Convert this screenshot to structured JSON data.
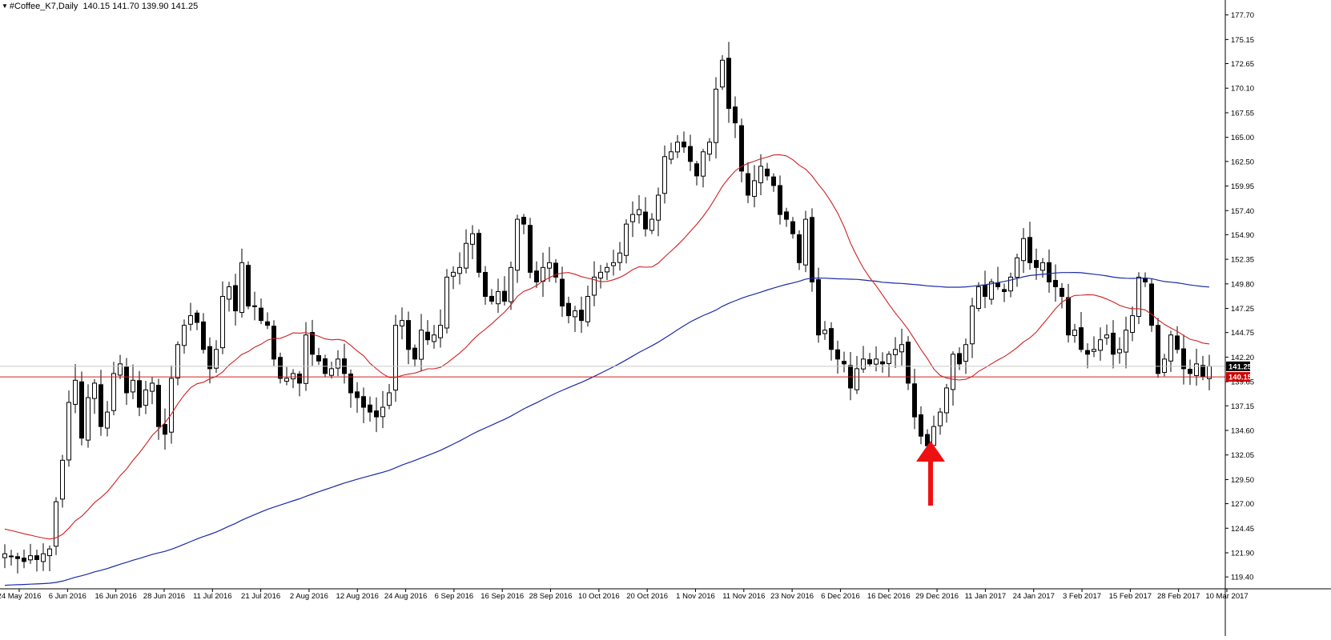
{
  "header": {
    "symbol": "#Coffee_K7,Daily",
    "ohlc": "140.15 141.70 139.90 141.25"
  },
  "colors": {
    "background": "#ffffff",
    "candle": "#000000",
    "ma_fast": "#cc2222",
    "ma_slow": "#1c2aa6",
    "bid_line": "#cc2222",
    "ask_line": "#c8c8c8",
    "bid_label_bg": "#cc0000",
    "ask_label_bg": "#000000",
    "arrow": "#ee1111"
  },
  "chart_data": {
    "type": "candlestick",
    "title": "#Coffee_K7,Daily",
    "grid": false,
    "ylim": [
      118.25,
      178.75
    ],
    "y_ticks": [
      "177.70",
      "175.15",
      "172.65",
      "170.10",
      "167.55",
      "165.00",
      "162.50",
      "159.95",
      "157.40",
      "154.90",
      "152.35",
      "149.80",
      "147.25",
      "144.75",
      "142.20",
      "139.65",
      "137.15",
      "134.60",
      "132.05",
      "129.50",
      "127.00",
      "124.45",
      "121.90",
      "119.40"
    ],
    "x_labels": [
      "24 May 2016",
      "6 Jun 2016",
      "16 Jun 2016",
      "28 Jun 2016",
      "11 Jul 2016",
      "21 Jul 2016",
      "2 Aug 2016",
      "12 Aug 2016",
      "24 Aug 2016",
      "6 Sep 2016",
      "16 Sep 2016",
      "28 Sep 2016",
      "10 Oct 2016",
      "20 Oct 2016",
      "1 Nov 2016",
      "11 Nov 2016",
      "23 Nov 2016",
      "6 Dec 2016",
      "16 Dec 2016",
      "29 Dec 2016",
      "11 Jan 2017",
      "24 Jan 2017",
      "3 Feb 2017",
      "15 Feb 2017",
      "28 Feb 2017",
      "10 Mar 2017"
    ],
    "bid": "140.15",
    "ask": "141.25",
    "closes": [
      121.8,
      121.5,
      121.3,
      121.0,
      121.6,
      121.2,
      121.8,
      122.3,
      127.2,
      131.5,
      137.5,
      139.8,
      133.8,
      138.0,
      139.5,
      135.0,
      136.5,
      140.5,
      141.5,
      138.5,
      139.8,
      137.0,
      138.8,
      139.5,
      135.0,
      134.2,
      140.0,
      143.5,
      145.5,
      146.5,
      145.8,
      143.0,
      141.0,
      143.0,
      148.5,
      149.5,
      147.0,
      152.0,
      147.5,
      147.5,
      146.0,
      145.5,
      142.0,
      140.0,
      140.0,
      140.5,
      139.5,
      144.5,
      142.5,
      141.8,
      140.5,
      141.0,
      142.0,
      140.5,
      138.5,
      138.0,
      137.0,
      136.5,
      136.0,
      137.0,
      138.5,
      145.5,
      146.0,
      143.0,
      142.0,
      145.0,
      144.0,
      144.5,
      145.5,
      150.5,
      151.0,
      151.5,
      154.0,
      155.0,
      151.0,
      148.5,
      148.0,
      149.0,
      148.0,
      151.5,
      156.5,
      156.0,
      151.0,
      150.0,
      151.5,
      152.0,
      150.5,
      147.5,
      146.5,
      147.0,
      146.0,
      148.5,
      150.5,
      151.0,
      151.5,
      152.0,
      153.0,
      156.0,
      157.0,
      157.5,
      155.5,
      156.5,
      159.0,
      163.0,
      163.5,
      164.5,
      164.0,
      162.5,
      161.0,
      163.5,
      164.5,
      170.0,
      173.0,
      168.0,
      166.5,
      161.5,
      159.0,
      160.5,
      162.0,
      161.0,
      160.0,
      157.0,
      156.5,
      155.0,
      152.0,
      156.5,
      150.0,
      144.5,
      145.0,
      143.0,
      142.0,
      141.5,
      139.0,
      141.0,
      142.0,
      141.5,
      142.0,
      141.5,
      142.5,
      143.0,
      143.5,
      139.5,
      136.0,
      134.0,
      133.0,
      135.0,
      136.5,
      139.0,
      142.5,
      141.5,
      143.5,
      147.5,
      149.5,
      148.5,
      150.0,
      149.5,
      149.0,
      150.5,
      152.5,
      154.5,
      152.0,
      151.5,
      152.0,
      150.0,
      149.5,
      148.5,
      144.5,
      145.0,
      143.0,
      142.5,
      143.0,
      144.0,
      144.5,
      142.5,
      143.0,
      145.0,
      146.5,
      150.5,
      150.0,
      145.5,
      140.5,
      142.0,
      144.5,
      143.0,
      141.0,
      140.5,
      141.5,
      140.2,
      141.25
    ]
  },
  "annotation": {
    "icon": "up-arrow-icon"
  }
}
